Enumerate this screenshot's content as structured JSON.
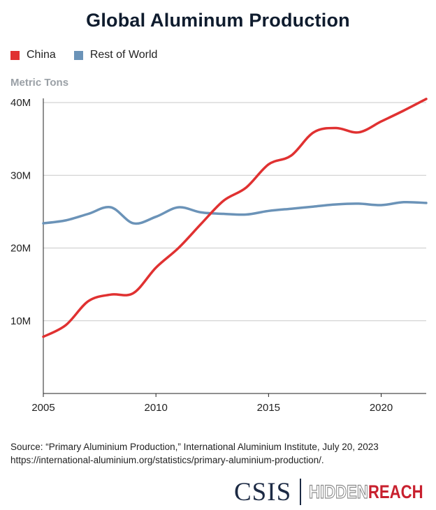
{
  "title": "Global Aluminum Production",
  "legend": [
    {
      "label": "China",
      "color": "#e03131"
    },
    {
      "label": "Rest of World",
      "color": "#6b93b8"
    }
  ],
  "unit_label": "Metric Tons",
  "source": {
    "line1": "Source: “Primary Aluminium Production,” International Aluminium Institute, July 20, 2023",
    "line2": "https://international-aluminium.org/statistics/primary-aluminium-production/."
  },
  "logos": {
    "csis": "CSIS",
    "hidden": "HIDDEN",
    "reach": "REACH"
  },
  "chart_data": {
    "type": "line",
    "title": "Global Aluminum Production",
    "ylabel": "Metric Tons",
    "xlabel": "",
    "xlim": [
      2005,
      2022
    ],
    "ylim": [
      0,
      40000000
    ],
    "x_ticks": [
      2005,
      2010,
      2015,
      2020
    ],
    "x_tick_labels": [
      "2005",
      "2010",
      "2015",
      "2020"
    ],
    "y_ticks": [
      10000000,
      20000000,
      30000000,
      40000000
    ],
    "y_tick_labels": [
      "10M",
      "20M",
      "30M",
      "40M"
    ],
    "grid": "horizontal",
    "legend_position": "top-left",
    "x": [
      2005,
      2006,
      2007,
      2008,
      2009,
      2010,
      2011,
      2012,
      2013,
      2014,
      2015,
      2016,
      2017,
      2018,
      2019,
      2020,
      2021,
      2022
    ],
    "series": [
      {
        "name": "China",
        "color": "#e03131",
        "values": [
          7800000,
          9400000,
          12700000,
          13600000,
          13800000,
          17300000,
          20000000,
          23300000,
          26500000,
          28300000,
          31500000,
          32700000,
          35900000,
          36500000,
          35900000,
          37400000,
          38900000,
          40500000
        ]
      },
      {
        "name": "Rest of World",
        "color": "#6b93b8",
        "values": [
          23400000,
          23800000,
          24700000,
          25600000,
          23400000,
          24300000,
          25600000,
          24900000,
          24700000,
          24600000,
          25100000,
          25400000,
          25700000,
          26000000,
          26100000,
          25900000,
          26300000,
          26200000
        ]
      }
    ]
  }
}
